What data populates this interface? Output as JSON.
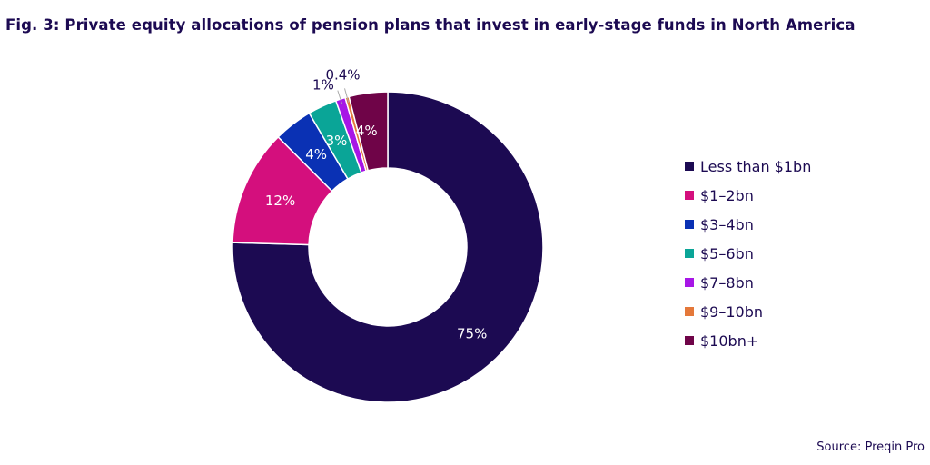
{
  "title": "Fig. 3: Private equity allocations of pension plans that invest in early-stage funds in North America",
  "source": "Source: Preqin Pro",
  "chart_data": {
    "type": "pie",
    "subtype": "donut",
    "title": "Fig. 3: Private equity allocations of pension plans that invest in early-stage funds in North America",
    "legend_position": "right",
    "categories": [
      "Less than $1bn",
      "$1-2bn",
      "$3-4bn",
      "$5-6bn",
      "$7-8bn",
      "$9-10bn",
      "$10bn+"
    ],
    "legend_labels": [
      "Less than $1bn",
      "$1–2bn",
      "$3–4bn",
      "$5–6bn",
      "$7–8bn",
      "$9–10bn",
      "$10bn+"
    ],
    "values": [
      75,
      12,
      4,
      3,
      1,
      0.4,
      4
    ],
    "data_labels": [
      "75%",
      "12%",
      "4%",
      "3%",
      "1%",
      "0.4%",
      "4%"
    ],
    "colors": [
      "#1c0a52",
      "#d40f7d",
      "#0a31b4",
      "#0aa597",
      "#a716e6",
      "#e4783a",
      "#6f0448"
    ]
  }
}
